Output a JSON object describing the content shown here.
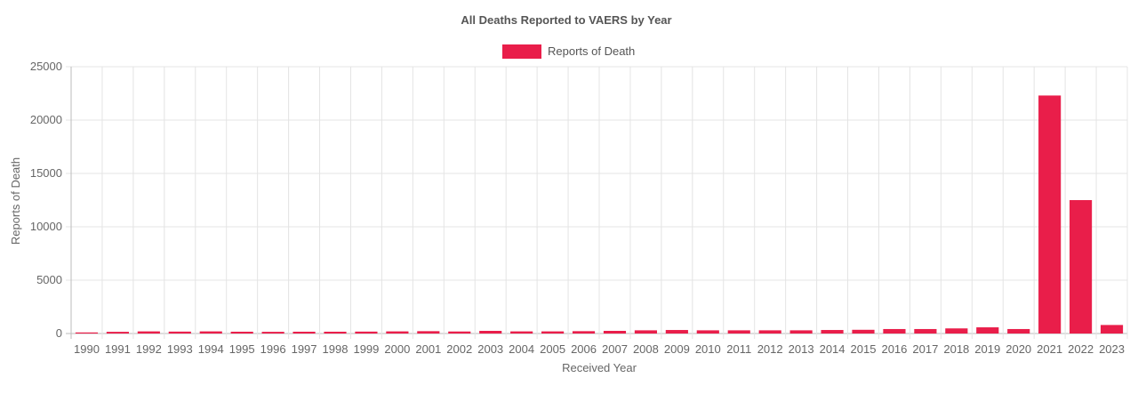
{
  "chart_data": {
    "type": "bar",
    "title": "All Deaths Reported to VAERS by Year",
    "xlabel": "Received Year",
    "ylabel": "Reports of Death",
    "ylim": [
      0,
      25000
    ],
    "yticks": [
      0,
      5000,
      10000,
      15000,
      20000,
      25000
    ],
    "grid": true,
    "legend_position": "top",
    "categories": [
      "1990",
      "1991",
      "1992",
      "1993",
      "1994",
      "1995",
      "1996",
      "1997",
      "1998",
      "1999",
      "2000",
      "2001",
      "2002",
      "2003",
      "2004",
      "2005",
      "2006",
      "2007",
      "2008",
      "2009",
      "2010",
      "2011",
      "2012",
      "2013",
      "2014",
      "2015",
      "2016",
      "2017",
      "2018",
      "2019",
      "2020",
      "2021",
      "2022",
      "2023"
    ],
    "series": [
      {
        "name": "Reports of Death",
        "color": "#e91e4a",
        "values": [
          100,
          160,
          200,
          180,
          200,
          170,
          160,
          170,
          170,
          180,
          200,
          220,
          190,
          250,
          200,
          200,
          220,
          250,
          300,
          330,
          300,
          300,
          300,
          300,
          330,
          350,
          420,
          420,
          480,
          580,
          420,
          22300,
          12500,
          800
        ]
      }
    ]
  }
}
